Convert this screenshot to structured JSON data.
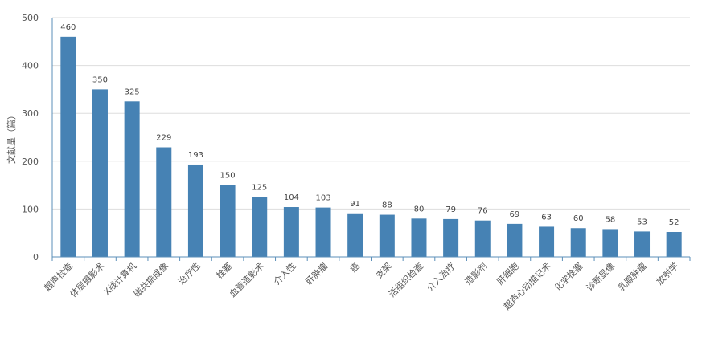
{
  "chart_data": {
    "type": "bar",
    "ylabel": "文献量（篇）",
    "ylim": [
      0,
      500
    ],
    "yticks": [
      0,
      100,
      200,
      300,
      400,
      500
    ],
    "grid": true,
    "categories": [
      "超声检查",
      "体层摄影术",
      "X线计算机",
      "磁共振成像",
      "治疗性",
      "栓塞",
      "血管造影术",
      "介入性",
      "肝肿瘤",
      "癌",
      "支架",
      "活组织检查",
      "介入治疗",
      "造影剂",
      "肝细胞",
      "超声心动描记术",
      "化学栓塞",
      "诊断显像",
      "乳腺肿瘤",
      "放射学"
    ],
    "values": [
      460,
      350,
      325,
      229,
      193,
      150,
      125,
      104,
      103,
      91,
      88,
      80,
      79,
      76,
      69,
      63,
      60,
      58,
      53,
      52
    ],
    "bar_color": "#4682b4",
    "grid_color": "#dddddd",
    "axis_color": "#5b8fb9"
  }
}
